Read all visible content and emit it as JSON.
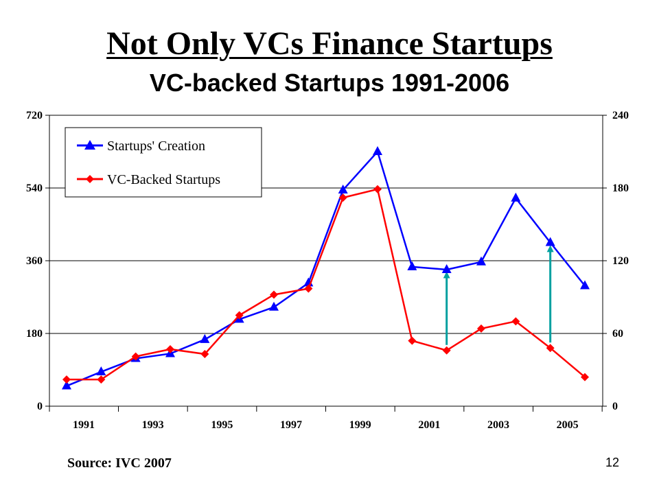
{
  "title": "Not Only VCs Finance Startups",
  "subtitle": "VC-backed Startups 1991-2006",
  "source": "Source: IVC 2007",
  "page_number": "12",
  "chart_data": {
    "type": "line",
    "x": [
      1991,
      1992,
      1993,
      1994,
      1995,
      1996,
      1997,
      1998,
      1999,
      2000,
      2001,
      2002,
      2003,
      2004,
      2005,
      2006
    ],
    "x_tick_labels": [
      "1991",
      "1993",
      "1995",
      "1997",
      "1999",
      "2001",
      "2003",
      "2005"
    ],
    "y_left": {
      "ylim": [
        0,
        720
      ],
      "ticks": [
        0,
        180,
        360,
        540,
        720
      ]
    },
    "y_right": {
      "ylim": [
        0,
        240
      ],
      "ticks": [
        0,
        60,
        120,
        180,
        240
      ]
    },
    "grid": true,
    "legend_position": "top-left",
    "series": [
      {
        "name": "Startups' Creation",
        "axis": "left",
        "color": "#0000ff",
        "marker": "triangle",
        "values": [
          50,
          85,
          118,
          130,
          165,
          215,
          245,
          305,
          535,
          630,
          345,
          338,
          357,
          515,
          405,
          298
        ]
      },
      {
        "name": "VC-Backed Startups",
        "axis": "right",
        "color": "#ff0000",
        "marker": "diamond",
        "values": [
          22,
          22,
          41,
          47,
          43,
          75,
          92,
          97,
          172,
          179,
          54,
          46,
          64,
          70,
          48,
          24
        ]
      }
    ],
    "annotations": [
      {
        "type": "arrow",
        "x": 2002,
        "from_right_axis": 46,
        "to_left_axis": 325,
        "color": "#00a0a0"
      },
      {
        "type": "arrow",
        "x": 2005,
        "from_right_axis": 48,
        "to_left_axis": 390,
        "color": "#00a0a0"
      }
    ]
  }
}
